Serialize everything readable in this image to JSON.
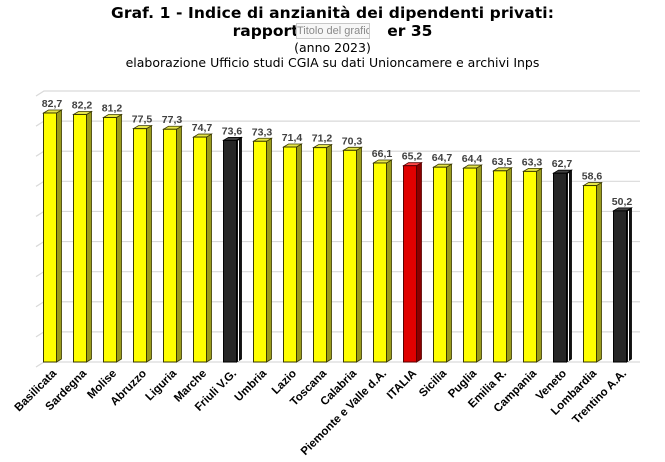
{
  "header": {
    "title_line1": "Graf. 1 - Indice di anzianità dei dipendenti privati:",
    "title_line2_left": "rapporto",
    "title_line2_right": "er 35",
    "subtitle": "(anno 2023)",
    "source": "elaborazione Ufficio studi CGIA  su dati Unioncamere e archivi Inps"
  },
  "tooltip": {
    "text": "Titolo del grafico"
  },
  "colors": {
    "region": "#ffff00",
    "region_side": "#9a9a1c",
    "highlight_dark": "#262626",
    "highlight_dark_side": "#111111",
    "italia": "#e00000",
    "italia_side": "#8a0000",
    "gridline": "#d9d9d9"
  },
  "chart_data": {
    "type": "bar",
    "title": "Graf. 1 - Indice di anzianità dei dipendenti privati: rapporto ... er 35",
    "subtitle": "(anno 2023)",
    "xlabel": "",
    "ylabel": "",
    "ylim": [
      0,
      90
    ],
    "grid": true,
    "legend": "none",
    "categories": [
      "Basilicata",
      "Sardegna",
      "Molise",
      "Abruzzo",
      "Liguria",
      "Marche",
      "Friuli V.G.",
      "Umbria",
      "Lazio",
      "Toscana",
      "Calabria",
      "Piemonte e Valle d.A.",
      "ITALIA",
      "Sicilia",
      "Puglia",
      "Emilia R.",
      "Campania",
      "Veneto",
      "Lombardia",
      "Trentino A.A."
    ],
    "values": [
      82.7,
      82.2,
      81.2,
      77.5,
      77.3,
      74.7,
      73.6,
      73.3,
      71.4,
      71.2,
      70.3,
      66.1,
      65.2,
      64.7,
      64.4,
      63.5,
      63.3,
      62.7,
      58.6,
      50.2
    ],
    "value_labels": [
      "82,7",
      "82,2",
      "81,2",
      "77,5",
      "77,3",
      "74,7",
      "73,6",
      "73,3",
      "71,4",
      "71,2",
      "70,3",
      "66,1",
      "65,2",
      "64,7",
      "64,4",
      "63,5",
      "63,3",
      "62,7",
      "58,6",
      "50,2"
    ],
    "bar_style": [
      "region",
      "region",
      "region",
      "region",
      "region",
      "region",
      "dark",
      "region",
      "region",
      "region",
      "region",
      "region",
      "italia",
      "region",
      "region",
      "region",
      "region",
      "dark",
      "region",
      "dark"
    ]
  }
}
